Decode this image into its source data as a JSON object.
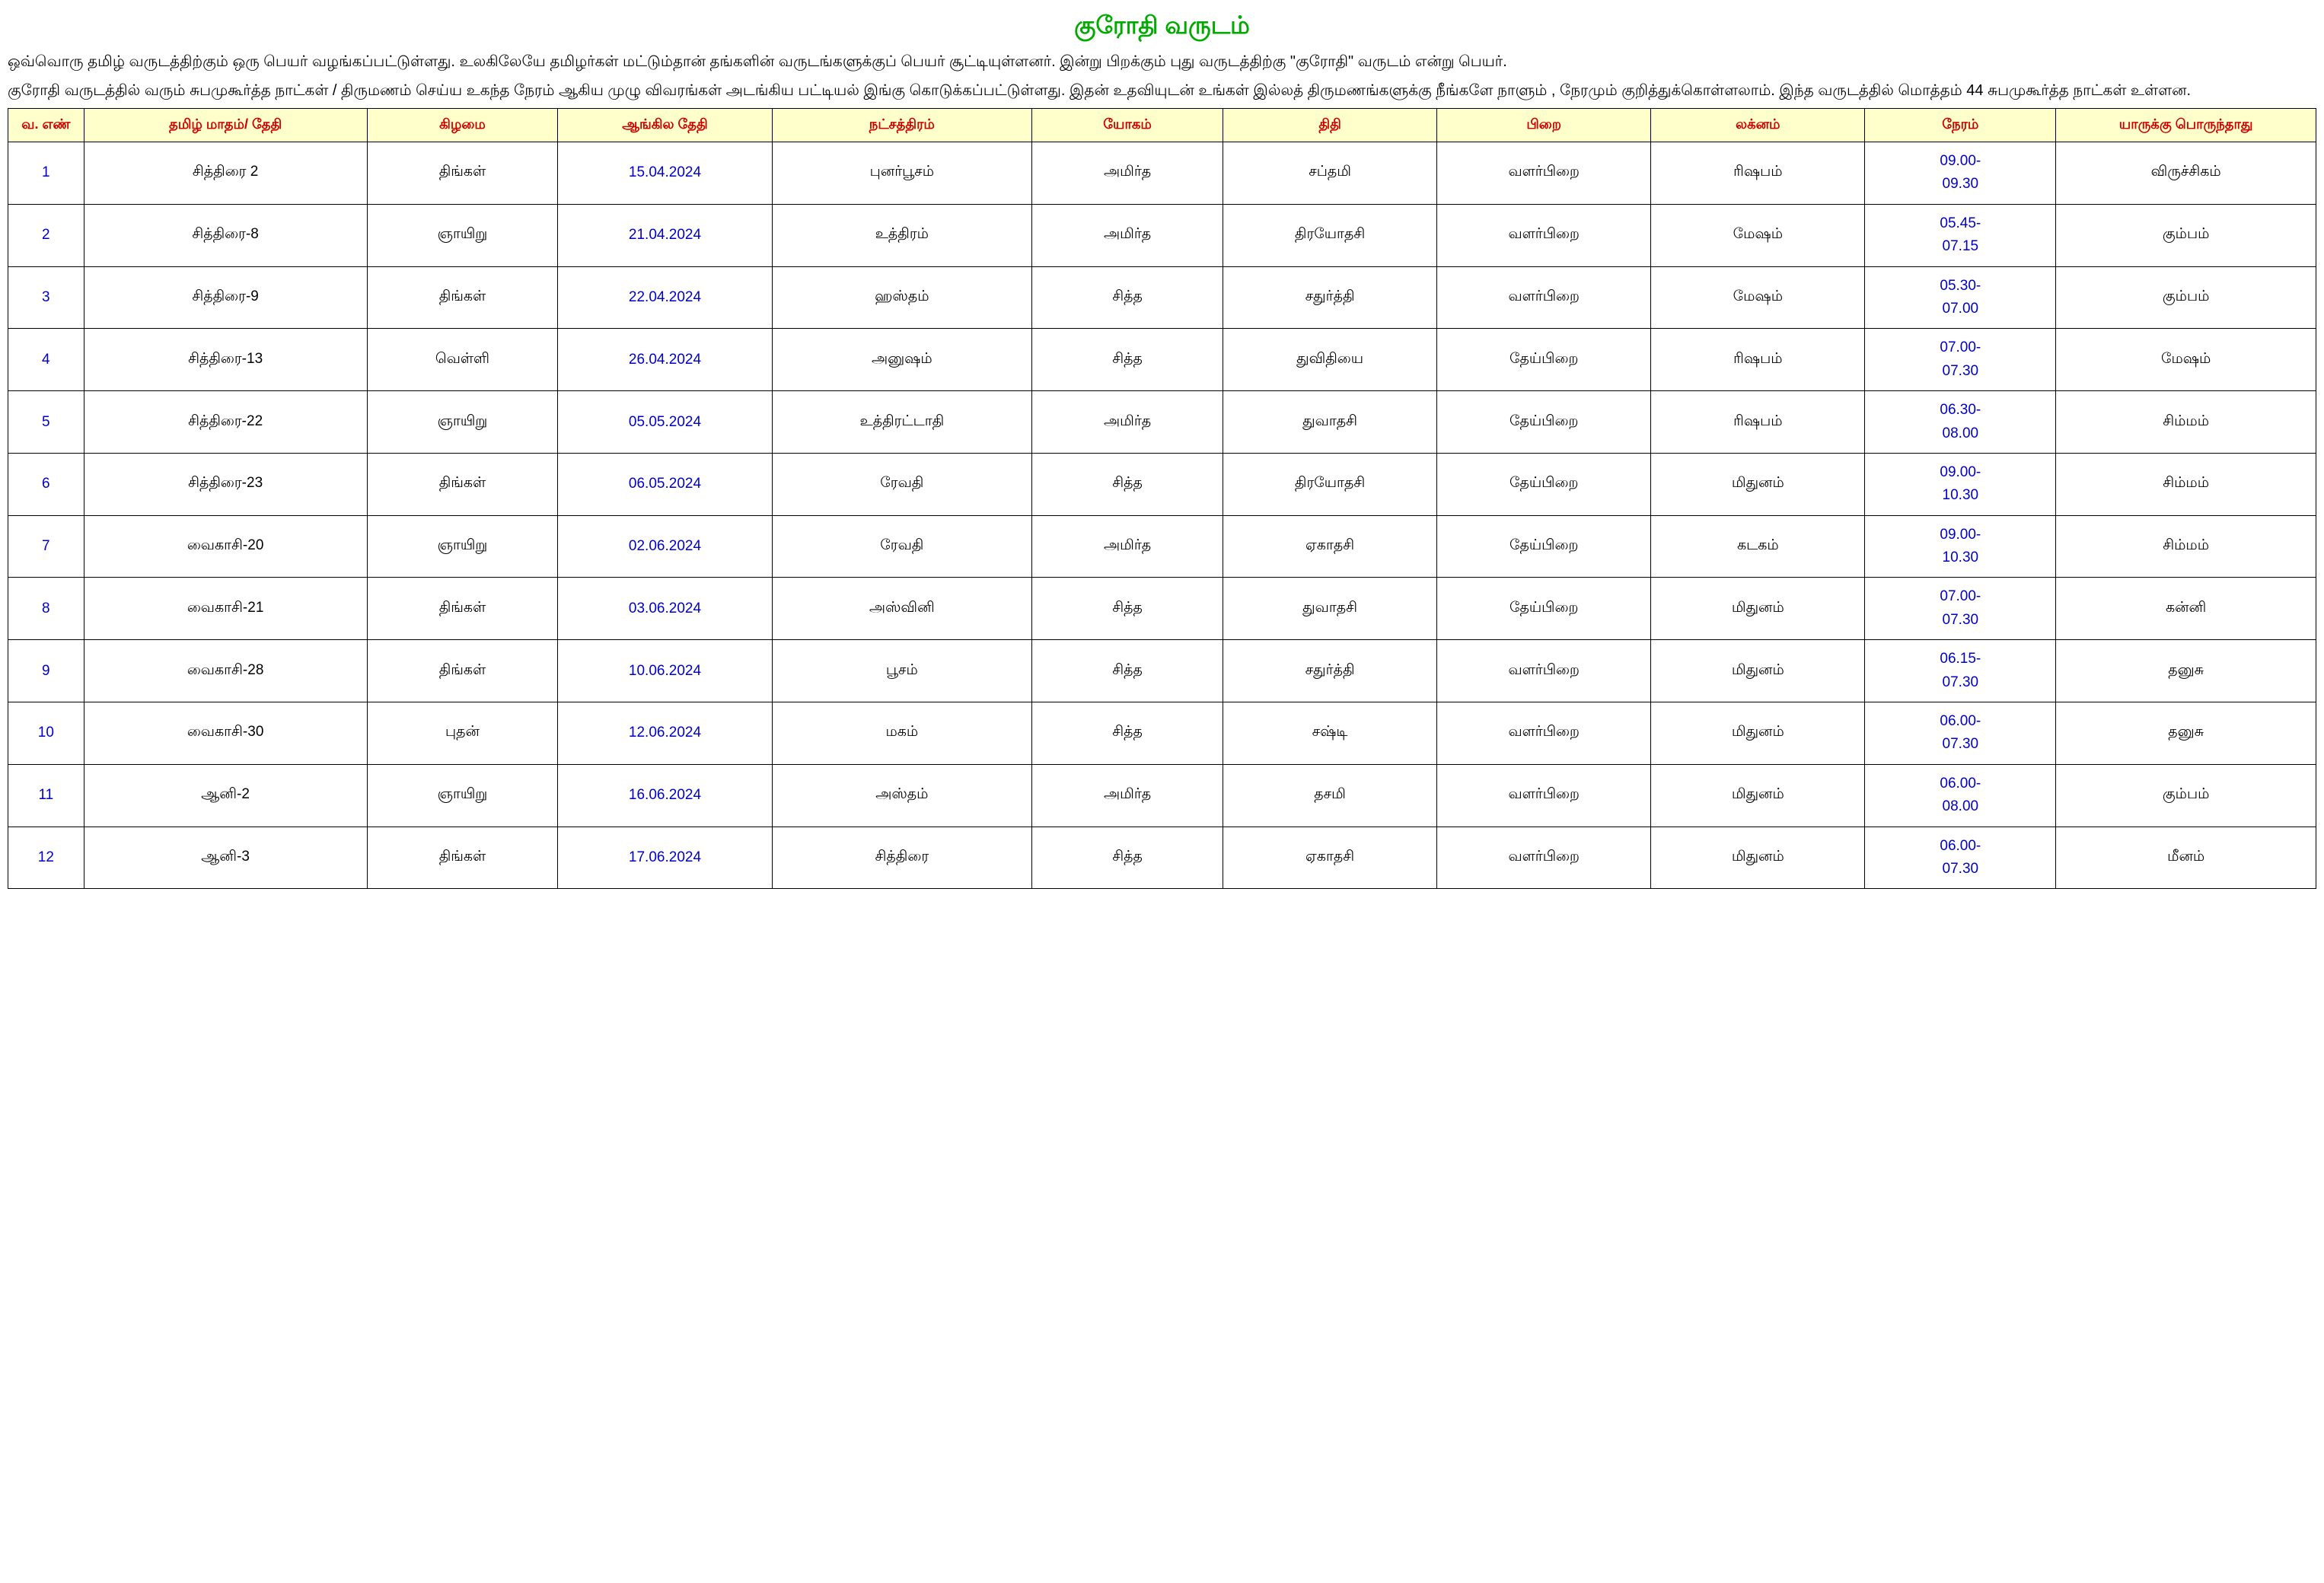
{
  "title": "குரோதி வருடம்",
  "intro_p1": "ஒவ்வொரு தமிழ் வருடத்திற்கும் ஒரு பெயர் வழங்கப்பட்டுள்ளது. உலகிலேயே தமிழர்கள் மட்டும்தான் தங்களின் வருடங்களுக்குப் பெயர் சூட்டியுள்ளனர். இன்று பிறக்கும் புது வருடத்திற்கு \"குரோதி\" வருடம் என்று பெயர்.",
  "intro_p2": "குரோதி வருடத்தில் வரும் சுபமுகூர்த்த நாட்கள் / திருமணம் செய்ய உகந்த நேரம் ஆகிய முழு விவரங்கள் அடங்கிய பட்டியல் இங்கு கொடுக்கப்பட்டுள்ளது. இதன்   உதவியுடன் உங்கள் இல்லத் திருமணங்களுக்கு நீங்களே நாளும் , நேரமும் குறித்துக்கொள்ளலாம். இந்த வருடத்தில் மொத்தம் 44 சுபமுகூர்த்த நாட்கள் உள்ளன.",
  "headers": {
    "sno": "வ. எண்",
    "tamil_date": "தமிழ் மாதம்/ தேதி",
    "day": "கிழமை",
    "eng_date": "ஆங்கில தேதி",
    "star": "நட்சத்திரம்",
    "yogam": "யோகம்",
    "thithi": "திதி",
    "pirai": "பிறை",
    "laknam": "லக்னம்",
    "neram": "நேரம்",
    "who": "யாருக்கு பொருந்தாது"
  },
  "rows": [
    {
      "sno": "1",
      "tamil": "சித்திரை 2",
      "day": "திங்கள்",
      "eng": "15.04.2024",
      "star": "புனர்பூசம்",
      "yogam": "அமிர்த",
      "thithi": "சப்தமி",
      "pirai": "வளர்பிறை",
      "laknam": "ரிஷபம்",
      "t1": "09.00-",
      "t2": "09.30",
      "who": "விருச்சிகம்"
    },
    {
      "sno": "2",
      "tamil": "சித்திரை-8",
      "day": "ஞாயிறு",
      "eng": "21.04.2024",
      "star": "உத்திரம்",
      "yogam": "அமிர்த",
      "thithi": "திரயோதசி",
      "pirai": "வளர்பிறை",
      "laknam": "மேஷம்",
      "t1": "05.45-",
      "t2": "07.15",
      "who": "கும்பம்"
    },
    {
      "sno": "3",
      "tamil": "சித்திரை-9",
      "day": "திங்கள்",
      "eng": "22.04.2024",
      "star": "ஹஸ்தம்",
      "yogam": "சித்த",
      "thithi": "சதுர்த்தி",
      "pirai": "வளர்பிறை",
      "laknam": "மேஷம்",
      "t1": "05.30-",
      "t2": "07.00",
      "who": "கும்பம்"
    },
    {
      "sno": "4",
      "tamil": "சித்திரை-13",
      "day": "வெள்ளி",
      "eng": "26.04.2024",
      "star": "அனுஷம்",
      "yogam": "சித்த",
      "thithi": "துவிதியை",
      "pirai": "தேய்பிறை",
      "laknam": "ரிஷபம்",
      "t1": "07.00-",
      "t2": "07.30",
      "who": "மேஷம்"
    },
    {
      "sno": "5",
      "tamil": "சித்திரை-22",
      "day": "ஞாயிறு",
      "eng": "05.05.2024",
      "star": "உத்திரட்டாதி",
      "yogam": "அமிர்த",
      "thithi": "துவாதசி",
      "pirai": "தேய்பிறை",
      "laknam": "ரிஷபம்",
      "t1": "06.30-",
      "t2": "08.00",
      "who": "சிம்மம்"
    },
    {
      "sno": "6",
      "tamil": "சித்திரை-23",
      "day": "திங்கள்",
      "eng": "06.05.2024",
      "star": "ரேவதி",
      "yogam": "சித்த",
      "thithi": "திரயோதசி",
      "pirai": "தேய்பிறை",
      "laknam": "மிதுனம்",
      "t1": "09.00-",
      "t2": "10.30",
      "who": "சிம்மம்"
    },
    {
      "sno": "7",
      "tamil": "வைகாசி-20",
      "day": "ஞாயிறு",
      "eng": "02.06.2024",
      "star": "ரேவதி",
      "yogam": "அமிர்த",
      "thithi": "ஏகாதசி",
      "pirai": "தேய்பிறை",
      "laknam": "கடகம்",
      "t1": "09.00-",
      "t2": "10.30",
      "who": "சிம்மம்"
    },
    {
      "sno": "8",
      "tamil": "வைகாசி-21",
      "day": "திங்கள்",
      "eng": "03.06.2024",
      "star": "அஸ்வினி",
      "yogam": "சித்த",
      "thithi": "துவாதசி",
      "pirai": "தேய்பிறை",
      "laknam": "மிதுனம்",
      "t1": "07.00-",
      "t2": "07.30",
      "who": "கன்னி"
    },
    {
      "sno": "9",
      "tamil": "வைகாசி-28",
      "day": "திங்கள்",
      "eng": "10.06.2024",
      "star": "பூசம்",
      "yogam": "சித்த",
      "thithi": "சதுர்த்தி",
      "pirai": "வளர்பிறை",
      "laknam": "மிதுனம்",
      "t1": "06.15-",
      "t2": "07.30",
      "who": "தனுசு"
    },
    {
      "sno": "10",
      "tamil": "வைகாசி-30",
      "day": "புதன்",
      "eng": "12.06.2024",
      "star": "மகம்",
      "yogam": "சித்த",
      "thithi": "சஷ்டி",
      "pirai": "வளர்பிறை",
      "laknam": "மிதுனம்",
      "t1": "06.00-",
      "t2": "07.30",
      "who": "தனுசு"
    },
    {
      "sno": "11",
      "tamil": "ஆனி-2",
      "day": "ஞாயிறு",
      "eng": "16.06.2024",
      "star": "அஸ்தம்",
      "yogam": "அமிர்த",
      "thithi": "தசமி",
      "pirai": "வளர்பிறை",
      "laknam": "மிதுனம்",
      "t1": "06.00-",
      "t2": "08.00",
      "who": "கும்பம்"
    },
    {
      "sno": "12",
      "tamil": "ஆனி-3",
      "day": "திங்கள்",
      "eng": "17.06.2024",
      "star": "சித்திரை",
      "yogam": "சித்த",
      "thithi": "ஏகாதசி",
      "pirai": "வளர்பிறை",
      "laknam": "மிதுனம்",
      "t1": "06.00-",
      "t2": "07.30",
      "who": "மீனம்"
    }
  ],
  "colors": {
    "title": "#00aa00",
    "header_bg": "#ffffcc",
    "header_text": "#cc0000",
    "blue_text": "#0000cc",
    "black_text": "#000000",
    "border": "#000000",
    "background": "#ffffff"
  },
  "table_style": {
    "font_size_cell": 19,
    "font_size_header": 18,
    "border_width": 1.5
  }
}
